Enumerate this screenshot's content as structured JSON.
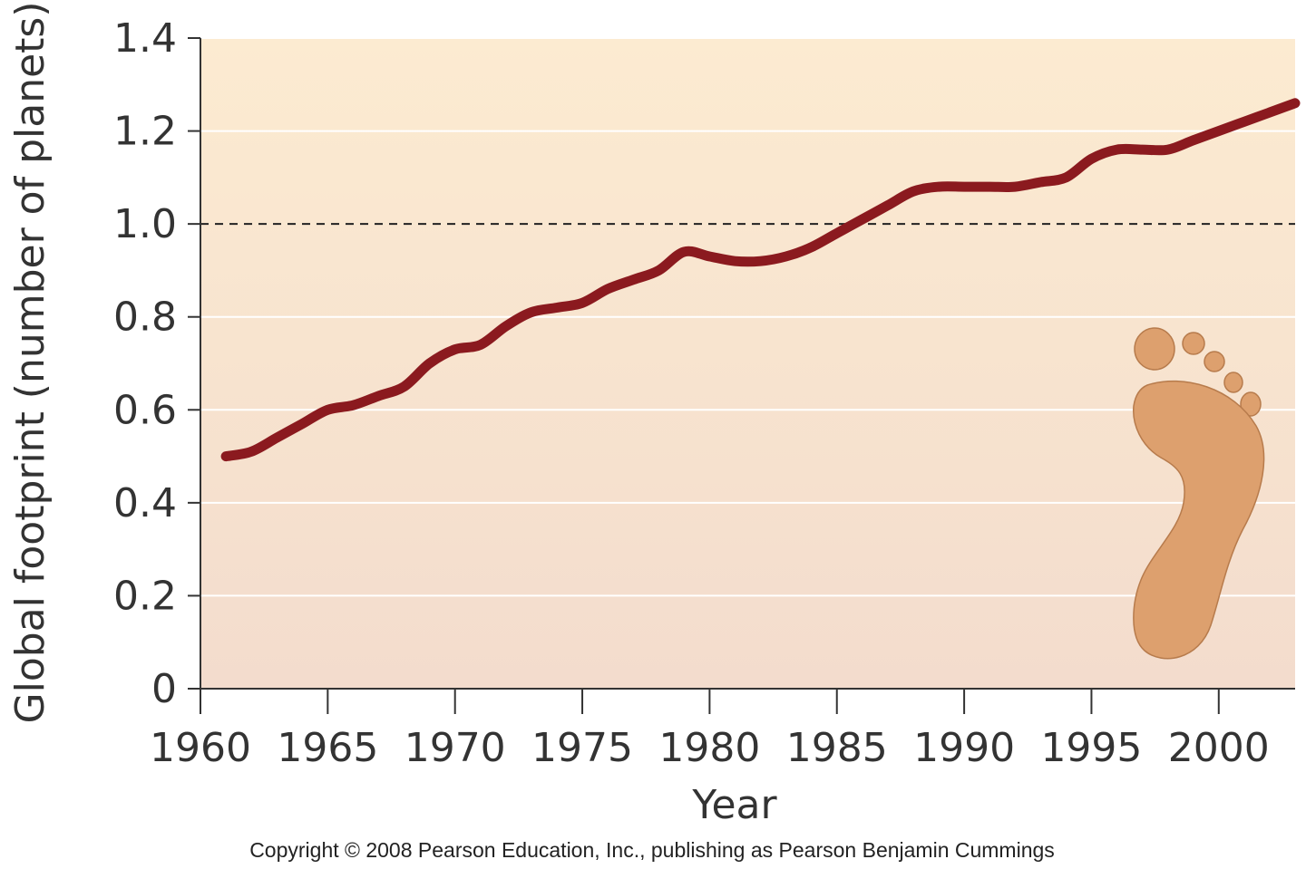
{
  "chart_data": {
    "type": "line",
    "title": "",
    "xlabel": "Year",
    "ylabel": "Global footprint (number of planets)",
    "xlim": [
      1960,
      2003
    ],
    "ylim": [
      0,
      1.4
    ],
    "x_ticks": [
      1960,
      1965,
      1970,
      1975,
      1980,
      1985,
      1990,
      1995,
      2000
    ],
    "y_ticks": [
      0,
      0.2,
      0.4,
      0.6,
      0.8,
      1.0,
      1.2,
      1.4
    ],
    "y_tick_labels": [
      "0",
      "0.2",
      "0.4",
      "0.6",
      "0.8",
      "1.0",
      "1.2",
      "1.4"
    ],
    "grid": "horizontal",
    "reference_line": {
      "y": 1.0,
      "style": "dashed"
    },
    "series": [
      {
        "color": "#8b1a1f",
        "x": [
          1961,
          1962,
          1963,
          1964,
          1965,
          1966,
          1967,
          1968,
          1969,
          1970,
          1971,
          1972,
          1973,
          1974,
          1975,
          1976,
          1977,
          1978,
          1979,
          1980,
          1981,
          1982,
          1983,
          1984,
          1985,
          1986,
          1987,
          1988,
          1989,
          1990,
          1991,
          1992,
          1993,
          1994,
          1995,
          1996,
          1997,
          1998,
          1999,
          2000,
          2001,
          2002,
          2003
        ],
        "y": [
          0.5,
          0.51,
          0.54,
          0.57,
          0.6,
          0.61,
          0.63,
          0.65,
          0.7,
          0.73,
          0.74,
          0.78,
          0.81,
          0.82,
          0.83,
          0.86,
          0.88,
          0.9,
          0.94,
          0.93,
          0.92,
          0.92,
          0.93,
          0.95,
          0.98,
          1.01,
          1.04,
          1.07,
          1.08,
          1.08,
          1.08,
          1.08,
          1.09,
          1.1,
          1.14,
          1.16,
          1.16,
          1.16,
          1.18,
          1.2,
          1.22,
          1.24,
          1.26
        ]
      }
    ],
    "colors": {
      "plot_bg_top": "#fcebd1",
      "plot_bg_bottom": "#f3dccd",
      "gridline": "#ffffff",
      "reference_line": "#222222",
      "footprint_fill": "#dda06e",
      "footprint_stroke": "#b77b4c"
    },
    "decoration": "footprint-icon"
  },
  "footer": {
    "copyright": "Copyright © 2008 Pearson Education, Inc., publishing as Pearson Benjamin Cummings"
  }
}
